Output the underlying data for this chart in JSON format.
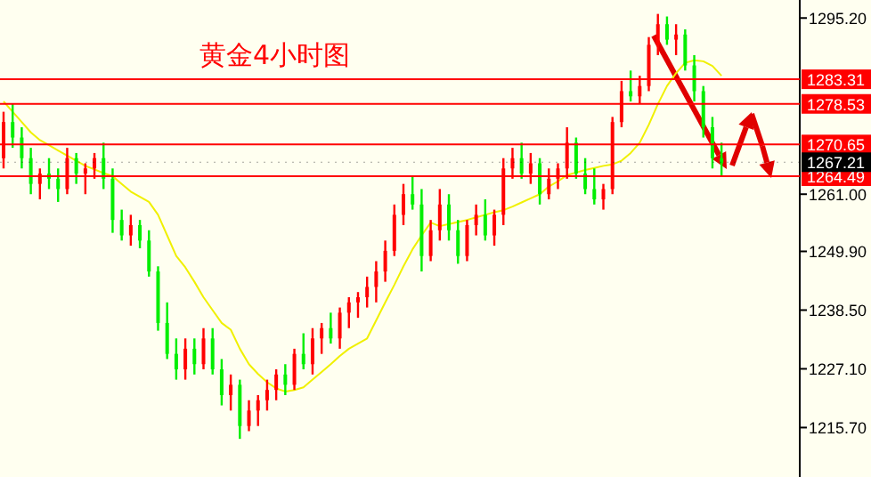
{
  "chart_data": {
    "type": "candlestick",
    "title": "黄金4小时图",
    "categories": [
      null,
      null,
      null,
      null,
      null,
      null,
      null,
      null,
      null,
      null,
      null,
      null,
      null,
      null,
      null,
      null,
      null,
      null,
      null,
      null,
      null,
      null,
      null,
      null,
      null,
      null,
      null,
      null,
      null,
      null,
      null,
      null,
      null,
      null,
      null,
      null,
      null,
      null,
      null,
      null,
      null,
      null,
      null,
      null,
      null,
      null,
      null,
      null,
      null,
      null,
      null,
      null,
      null,
      null,
      null,
      null,
      null,
      null,
      null,
      null,
      null,
      null,
      null,
      null,
      null,
      null,
      null,
      null,
      null,
      null,
      null,
      null,
      null,
      null,
      null,
      null,
      null,
      null,
      null,
      null
    ],
    "ohlc": [
      [
        1268,
        1277,
        1266,
        1275
      ],
      [
        1275,
        1278.5,
        1270,
        1272
      ],
      [
        1272,
        1274,
        1266,
        1268
      ],
      [
        1268,
        1270,
        1261,
        1263
      ],
      [
        1263,
        1266,
        1260,
        1265
      ],
      [
        1265,
        1268,
        1262,
        1264
      ],
      [
        1264,
        1266,
        1259.5,
        1262
      ],
      [
        1262,
        1270,
        1261,
        1268
      ],
      [
        1268,
        1269,
        1263,
        1265
      ],
      [
        1265,
        1267,
        1261,
        1266
      ],
      [
        1266,
        1269,
        1264,
        1268
      ],
      [
        1268,
        1271,
        1262,
        1264
      ],
      [
        1264,
        1266,
        1253.5,
        1256
      ],
      [
        1256,
        1258,
        1252,
        1253
      ],
      [
        1253,
        1257,
        1251,
        1255
      ],
      [
        1255,
        1256,
        1250.5,
        1252
      ],
      [
        1252,
        1254,
        1245,
        1246
      ],
      [
        1246,
        1247,
        1234.5,
        1236
      ],
      [
        1236,
        1240,
        1229,
        1230
      ],
      [
        1230,
        1233,
        1225,
        1227
      ],
      [
        1227,
        1233,
        1225,
        1231
      ],
      [
        1231,
        1233,
        1226,
        1228
      ],
      [
        1228,
        1235,
        1227,
        1233
      ],
      [
        1233,
        1235,
        1226,
        1227
      ],
      [
        1227,
        1229,
        1220,
        1222
      ],
      [
        1222,
        1226,
        1219,
        1224
      ],
      [
        1224,
        1225,
        1213.5,
        1216
      ],
      [
        1216,
        1221,
        1215,
        1219
      ],
      [
        1219,
        1222,
        1216,
        1221
      ],
      [
        1221,
        1225,
        1219,
        1223
      ],
      [
        1223,
        1227,
        1221,
        1226
      ],
      [
        1226,
        1228,
        1222,
        1224
      ],
      [
        1224,
        1231,
        1223,
        1230
      ],
      [
        1230,
        1234,
        1227,
        1228
      ],
      [
        1228,
        1235,
        1226,
        1233
      ],
      [
        1233,
        1236,
        1230,
        1235
      ],
      [
        1235,
        1238,
        1232,
        1233
      ],
      [
        1233,
        1239,
        1231,
        1238
      ],
      [
        1238,
        1241,
        1235,
        1240
      ],
      [
        1240,
        1242,
        1237,
        1241
      ],
      [
        1241,
        1245,
        1239,
        1243
      ],
      [
        1243,
        1248,
        1240,
        1246
      ],
      [
        1246,
        1252,
        1244,
        1250
      ],
      [
        1250,
        1259,
        1249,
        1257
      ],
      [
        1257,
        1263,
        1255,
        1261
      ],
      [
        1261,
        1264.5,
        1258,
        1259
      ],
      [
        1259,
        1262,
        1246,
        1249
      ],
      [
        1249,
        1256,
        1248,
        1254
      ],
      [
        1254,
        1262,
        1252,
        1259
      ],
      [
        1259,
        1261,
        1252,
        1254
      ],
      [
        1254,
        1256,
        1247.5,
        1249
      ],
      [
        1249,
        1256,
        1248,
        1255
      ],
      [
        1255,
        1259,
        1253,
        1257
      ],
      [
        1257,
        1260,
        1252,
        1253
      ],
      [
        1253,
        1258,
        1251,
        1257
      ],
      [
        1257,
        1268,
        1255,
        1266
      ],
      [
        1266,
        1270,
        1264,
        1268
      ],
      [
        1268,
        1271,
        1264,
        1265
      ],
      [
        1265,
        1269,
        1263,
        1267
      ],
      [
        1267,
        1268,
        1259,
        1261
      ],
      [
        1261,
        1266,
        1260,
        1264
      ],
      [
        1264,
        1267,
        1262,
        1266
      ],
      [
        1266,
        1274,
        1264,
        1271
      ],
      [
        1271,
        1272,
        1264,
        1265
      ],
      [
        1265,
        1268,
        1261,
        1262
      ],
      [
        1262,
        1266,
        1259,
        1260
      ],
      [
        1260,
        1263,
        1258,
        1262
      ],
      [
        1262,
        1276,
        1261,
        1275
      ],
      [
        1275,
        1283,
        1274,
        1281
      ],
      [
        1281,
        1285,
        1279,
        1280
      ],
      [
        1280,
        1284,
        1278.5,
        1282
      ],
      [
        1282,
        1291.5,
        1281,
        1290
      ],
      [
        1290,
        1296,
        1288,
        1294
      ],
      [
        1294,
        1295.5,
        1290,
        1291
      ],
      [
        1291,
        1294,
        1288,
        1292
      ],
      [
        1292,
        1293,
        1285,
        1286
      ],
      [
        1286,
        1288,
        1279,
        1281
      ],
      [
        1281,
        1282,
        1272,
        1274
      ],
      [
        1274,
        1276,
        1266,
        1268
      ],
      [
        1268,
        1271,
        1264.5,
        1267
      ]
    ],
    "series": [
      {
        "type": "line",
        "color": "#f0f000",
        "values": [
          1279,
          1277,
          1275,
          1273,
          1271.5,
          1270.5,
          1269.5,
          1268.5,
          1267.5,
          1266.5,
          1265.8,
          1265.1,
          1264.5,
          1263,
          1261.5,
          1260.5,
          1259.5,
          1257,
          1253,
          1249,
          1246.8,
          1244,
          1241,
          1238.5,
          1236,
          1234.7,
          1231,
          1228,
          1226.1,
          1224.5,
          1223.3,
          1222.7,
          1223,
          1223.5,
          1225,
          1226.5,
          1228,
          1229.6,
          1231,
          1232,
          1233,
          1236.5,
          1240,
          1243.4,
          1247,
          1250.3,
          1253,
          1255.5,
          1254.8,
          1255.2,
          1255.6,
          1256,
          1256.5,
          1257,
          1257.5,
          1257.9,
          1258.6,
          1259.4,
          1260.2,
          1261,
          1262.5,
          1263.5,
          1264.7,
          1265.2,
          1265.7,
          1266.1,
          1266.5,
          1266.8,
          1267.5,
          1269,
          1271,
          1274.5,
          1278.5,
          1282,
          1284.5,
          1286.5,
          1287,
          1286.8,
          1285.9,
          1284
        ]
      }
    ],
    "ylim": [
      1206.1,
      1298.7
    ],
    "yticks": [
      {
        "value": 1295.2,
        "label": "1295.20"
      },
      {
        "value": 1261,
        "label": "1261.00"
      },
      {
        "value": 1249.9,
        "label": "1249.90"
      },
      {
        "value": 1238.5,
        "label": "1238.50"
      },
      {
        "value": 1227.1,
        "label": "1227.10"
      },
      {
        "value": 1215.7,
        "label": "1215.70"
      }
    ],
    "ref_lines": [
      {
        "axis": "y",
        "value": 1283.31,
        "label": "1283.31",
        "color": "#ff0000"
      },
      {
        "axis": "y",
        "value": 1278.53,
        "label": "1278.53",
        "color": "#ff0000"
      },
      {
        "axis": "y",
        "value": 1270.65,
        "label": "1270.65",
        "color": "#ff0000"
      },
      {
        "axis": "y",
        "value": 1264.49,
        "label": "1264.49",
        "color": "#ff0000"
      },
      {
        "axis": "y",
        "value": 1267.21,
        "label": "1267.21",
        "color": "#000000"
      }
    ],
    "grid": false
  }
}
